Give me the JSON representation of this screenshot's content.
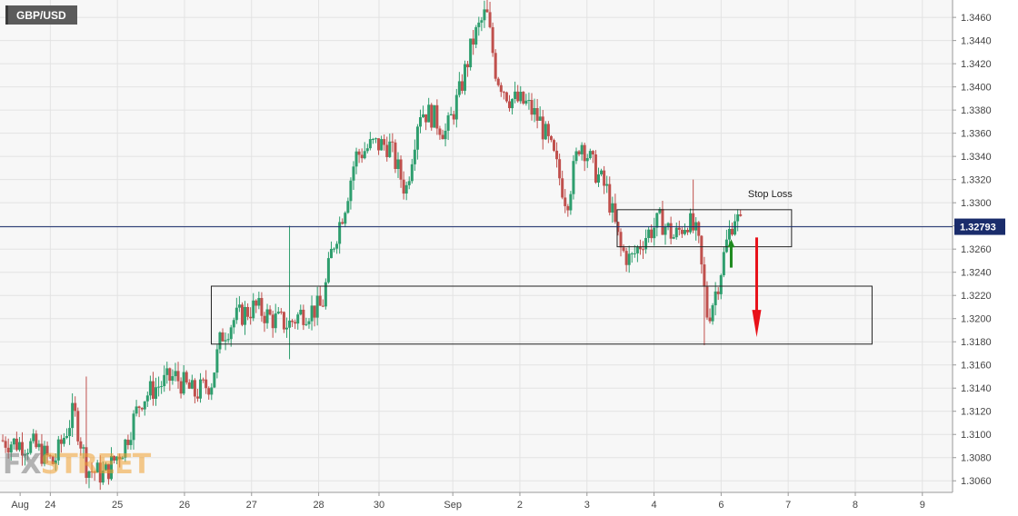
{
  "chart_data": {
    "type": "candlestick",
    "symbol": "GBP/USD",
    "current_price_label": "1.32793",
    "current_price": 1.32793,
    "ylim": [
      1.305,
      1.3475
    ],
    "xlim": [
      -0.3,
      13.9
    ],
    "y_ticks": [
      {
        "value": 1.306,
        "label": "1.3060"
      },
      {
        "value": 1.308,
        "label": "1.3080"
      },
      {
        "value": 1.31,
        "label": "1.3100"
      },
      {
        "value": 1.312,
        "label": "1.3120"
      },
      {
        "value": 1.314,
        "label": "1.3140"
      },
      {
        "value": 1.316,
        "label": "1.3160"
      },
      {
        "value": 1.318,
        "label": "1.3180"
      },
      {
        "value": 1.32,
        "label": "1.3200"
      },
      {
        "value": 1.322,
        "label": "1.3220"
      },
      {
        "value": 1.324,
        "label": "1.3240"
      },
      {
        "value": 1.326,
        "label": "1.3260"
      },
      {
        "value": 1.328,
        "label": "1.3280"
      },
      {
        "value": 1.33,
        "label": "1.3300"
      },
      {
        "value": 1.332,
        "label": "1.3320"
      },
      {
        "value": 1.334,
        "label": "1.3340"
      },
      {
        "value": 1.336,
        "label": "1.3360"
      },
      {
        "value": 1.338,
        "label": "1.3380"
      },
      {
        "value": 1.34,
        "label": "1.3400"
      },
      {
        "value": 1.342,
        "label": "1.3420"
      },
      {
        "value": 1.344,
        "label": "1.3440"
      },
      {
        "value": 1.346,
        "label": "1.3460"
      }
    ],
    "x_ticks": [
      {
        "value": 0,
        "label": "Aug"
      },
      {
        "value": 0.45,
        "label": "24"
      },
      {
        "value": 1.45,
        "label": "25"
      },
      {
        "value": 2.45,
        "label": "26"
      },
      {
        "value": 3.45,
        "label": "27"
      },
      {
        "value": 4.45,
        "label": "28"
      },
      {
        "value": 5.35,
        "label": "30"
      },
      {
        "value": 6.45,
        "label": "Sep"
      },
      {
        "value": 7.45,
        "label": "2"
      },
      {
        "value": 8.45,
        "label": "3"
      },
      {
        "value": 9.45,
        "label": "4"
      },
      {
        "value": 10.45,
        "label": "6"
      },
      {
        "value": 11.45,
        "label": "7"
      },
      {
        "value": 12.45,
        "label": "8"
      },
      {
        "value": 13.45,
        "label": "9"
      }
    ],
    "grid": true,
    "colors": {
      "up": "#2e9e6e",
      "down": "#c0504d",
      "price_line": "#1a2c6b",
      "badge": "#1a2c6b",
      "arrow_up": "#1e8a1e",
      "arrow_down": "#e8121a"
    },
    "waypoints": [
      [
        -0.3,
        1.3095
      ],
      [
        0.2,
        1.309
      ],
      [
        0.5,
        1.3075
      ],
      [
        0.8,
        1.312
      ],
      [
        1.0,
        1.307
      ],
      [
        1.25,
        1.3065
      ],
      [
        1.55,
        1.309
      ],
      [
        1.8,
        1.313
      ],
      [
        2.0,
        1.314
      ],
      [
        2.3,
        1.315
      ],
      [
        2.6,
        1.3135
      ],
      [
        2.85,
        1.3145
      ],
      [
        3.0,
        1.3185
      ],
      [
        3.2,
        1.32
      ],
      [
        3.5,
        1.321
      ],
      [
        3.75,
        1.32
      ],
      [
        4.0,
        1.3195
      ],
      [
        4.2,
        1.3205
      ],
      [
        4.5,
        1.321
      ],
      [
        4.65,
        1.326
      ],
      [
        4.85,
        1.33
      ],
      [
        5.0,
        1.334
      ],
      [
        5.25,
        1.335
      ],
      [
        5.5,
        1.335
      ],
      [
        5.75,
        1.331
      ],
      [
        5.95,
        1.338
      ],
      [
        6.15,
        1.3375
      ],
      [
        6.35,
        1.336
      ],
      [
        6.55,
        1.3395
      ],
      [
        6.75,
        1.344
      ],
      [
        6.95,
        1.3465
      ],
      [
        7.1,
        1.341
      ],
      [
        7.3,
        1.339
      ],
      [
        7.55,
        1.3385
      ],
      [
        7.75,
        1.337
      ],
      [
        7.95,
        1.334
      ],
      [
        8.15,
        1.33
      ],
      [
        8.35,
        1.3355
      ],
      [
        8.55,
        1.333
      ],
      [
        8.75,
        1.331
      ],
      [
        8.95,
        1.326
      ],
      [
        9.1,
        1.325
      ],
      [
        9.3,
        1.327
      ],
      [
        9.55,
        1.3285
      ],
      [
        9.75,
        1.327
      ],
      [
        9.95,
        1.3285
      ],
      [
        10.1,
        1.327
      ],
      [
        10.25,
        1.32
      ],
      [
        10.4,
        1.323
      ],
      [
        10.55,
        1.327
      ],
      [
        10.65,
        1.329
      ],
      [
        10.75,
        1.3279
      ]
    ],
    "spikes": [
      {
        "x": 1.0,
        "high": 1.315
      },
      {
        "x": 4.0,
        "high": 1.328,
        "low": 1.3165
      },
      {
        "x": 6.95,
        "high": 1.3475
      },
      {
        "x": 10.22,
        "low": 1.3177
      },
      {
        "x": 10.05,
        "high": 1.332
      }
    ],
    "zones": [
      {
        "x0": 2.85,
        "x1": 12.7,
        "y0": 1.3178,
        "y1": 1.3228
      },
      {
        "x0": 8.9,
        "x1": 11.5,
        "y0": 1.3262,
        "y1": 1.3294
      }
    ],
    "annotation": {
      "text": "Stop Loss",
      "x": 10.85,
      "y": 1.3305
    },
    "arrow_up": {
      "x": 10.6,
      "y_from": 1.3244,
      "y_to": 1.3267
    },
    "arrow_down": {
      "x": 10.98,
      "y_from": 1.327,
      "y_to": 1.3184
    }
  },
  "header": {
    "symbol_label": "GBP/USD"
  },
  "watermark": {
    "part1": "FX",
    "part2": "STREET"
  }
}
